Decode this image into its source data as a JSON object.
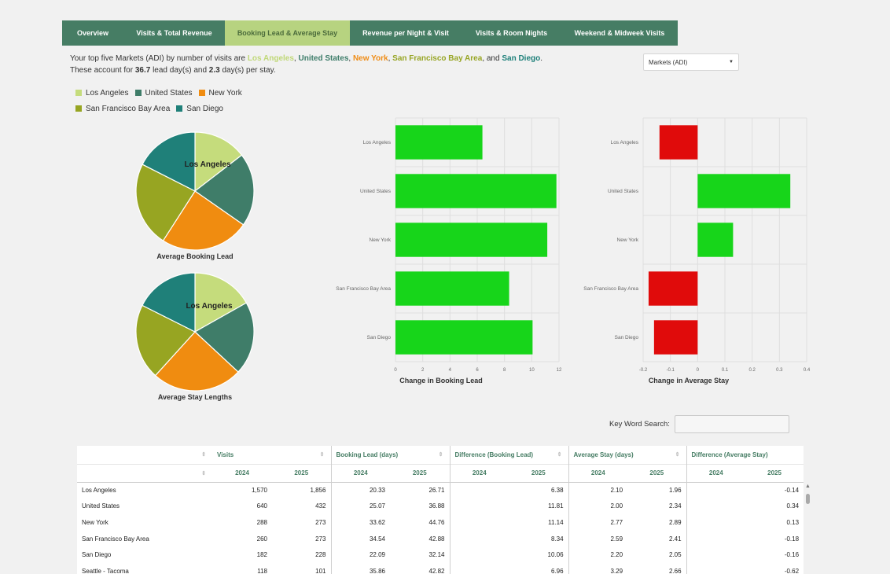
{
  "tabs": [
    {
      "label": "Overview",
      "active": false
    },
    {
      "label": "Visits & Total Revenue",
      "active": false
    },
    {
      "label": "Booking Lead & Average Stay",
      "active": true
    },
    {
      "label": "Revenue per Night & Visit",
      "active": false
    },
    {
      "label": "Visits & Room Nights",
      "active": false
    },
    {
      "label": "Weekend & Midweek Visits",
      "active": false
    }
  ],
  "intro": {
    "line1_prefix": "Your top five Markets (ADI) by number of visits are ",
    "markets": [
      "Los Angeles",
      "United States",
      "New York",
      "San Francisco Bay Area",
      "San Diego"
    ],
    "line1_and": ", and ",
    "line1_end": ".",
    "line2_prefix": "These account for ",
    "lead_days": "36.7",
    "line2_mid": " lead day(s) and ",
    "stay_days": "2.3",
    "line2_end": " day(s) per stay."
  },
  "dropdown": {
    "value": "Markets (ADI)"
  },
  "legend": [
    {
      "label": "Los Angeles",
      "color": "#c5dc7c"
    },
    {
      "label": "United States",
      "color": "#3f7d69"
    },
    {
      "label": "New York",
      "color": "#f08c10"
    },
    {
      "label": "San Francisco Bay Area",
      "color": "#97a522"
    },
    {
      "label": "San Diego",
      "color": "#1f8079"
    }
  ],
  "pies": {
    "booking_lead": {
      "caption": "Average Booking Lead",
      "hover_label": "Los Angeles",
      "values": [
        26.71,
        36.88,
        44.76,
        42.88,
        32.14
      ]
    },
    "stay_length": {
      "caption": "Average Stay Lengths",
      "hover_label": "Los Angeles",
      "values": [
        1.96,
        2.34,
        2.89,
        2.41,
        2.05
      ]
    }
  },
  "chart_data": [
    {
      "type": "bar",
      "orientation": "horizontal",
      "title": "",
      "xlabel": "Change in Booking Lead",
      "categories": [
        "Los Angeles",
        "United States",
        "New York",
        "San Francisco Bay Area",
        "San Diego"
      ],
      "values": [
        6.38,
        11.81,
        11.14,
        8.34,
        10.06
      ],
      "xlim": [
        0,
        12
      ],
      "ticks": [
        0,
        2,
        4,
        6,
        8,
        10,
        12
      ],
      "tick_labels": [
        "0",
        "2",
        "4",
        "6",
        "8",
        "10",
        "12"
      ],
      "pos_color": "#17d51a",
      "neg_color": "#e00b0b",
      "grid": true
    },
    {
      "type": "bar",
      "orientation": "horizontal",
      "title": "",
      "xlabel": "Change in Average Stay",
      "categories": [
        "Los Angeles",
        "United States",
        "New York",
        "San Francisco Bay Area",
        "San Diego"
      ],
      "values": [
        -0.14,
        0.34,
        0.13,
        -0.18,
        -0.16
      ],
      "xlim": [
        -0.2,
        0.4
      ],
      "ticks": [
        -0.2,
        -0.1,
        0,
        0.1,
        0.2,
        0.3,
        0.4
      ],
      "tick_labels": [
        "-0.2",
        "-0.1",
        "0",
        "0.1",
        "0.2",
        "0.3",
        "0.4"
      ],
      "pos_color": "#17d51a",
      "neg_color": "#e00b0b",
      "grid": true
    }
  ],
  "search": {
    "label": "Key Word Search:",
    "value": ""
  },
  "table": {
    "groups": [
      "Visits",
      "Booking Lead (days)",
      "Difference (Booking Lead)",
      "Average Stay (days)",
      "Difference (Average Stay)"
    ],
    "subheaders": [
      "2024",
      "2025",
      "2024",
      "2025",
      "2024",
      "2025",
      "2024",
      "2025",
      "2024",
      "2025"
    ],
    "rows": [
      [
        "Los Angeles",
        "1,570",
        "1,856",
        "20.33",
        "26.71",
        "6.38",
        "2.10",
        "1.96",
        "-0.14"
      ],
      [
        "United States",
        "640",
        "432",
        "25.07",
        "36.88",
        "11.81",
        "2.00",
        "2.34",
        "0.34"
      ],
      [
        "New York",
        "288",
        "273",
        "33.62",
        "44.76",
        "11.14",
        "2.77",
        "2.89",
        "0.13"
      ],
      [
        "San Francisco Bay Area",
        "260",
        "273",
        "34.54",
        "42.88",
        "8.34",
        "2.59",
        "2.41",
        "-0.18"
      ],
      [
        "San Diego",
        "182",
        "228",
        "22.09",
        "32.14",
        "10.06",
        "2.20",
        "2.05",
        "-0.16"
      ],
      [
        "Seattle - Tacoma",
        "118",
        "101",
        "35.86",
        "42.82",
        "6.96",
        "3.29",
        "2.66",
        "-0.62"
      ]
    ]
  }
}
